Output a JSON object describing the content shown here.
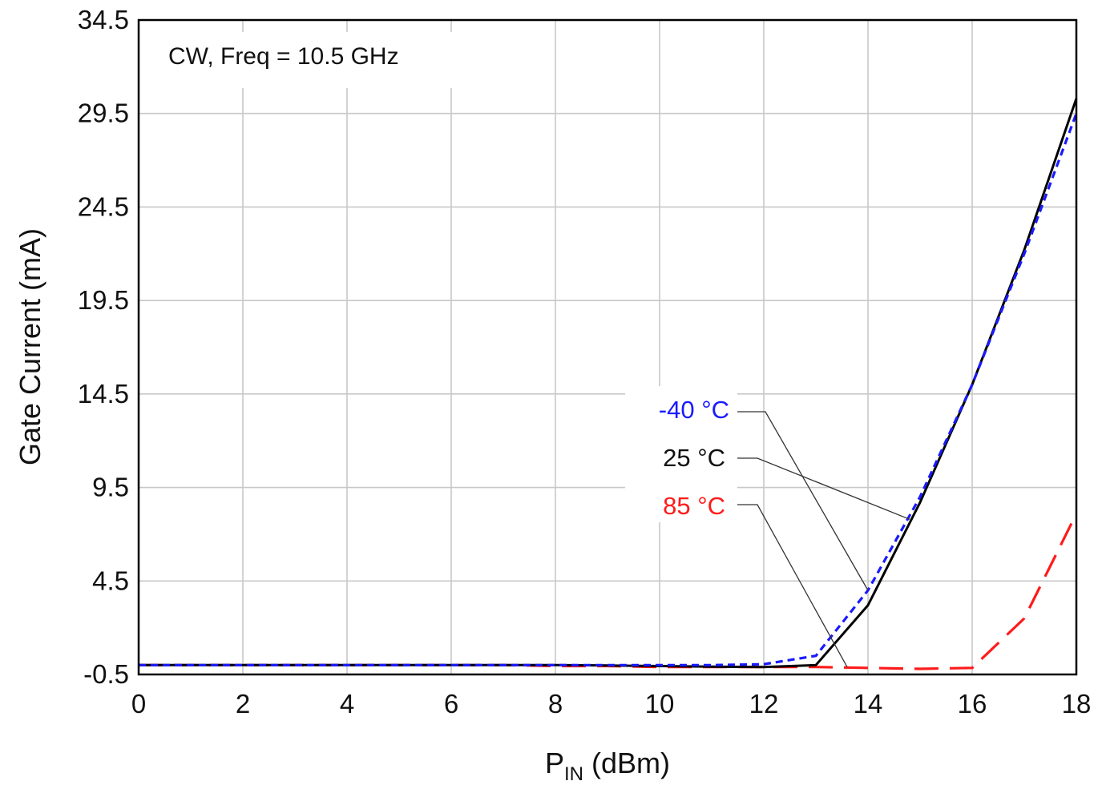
{
  "chart_data": {
    "type": "line",
    "annotation": "CW, Freq = 10.5 GHz",
    "xlabel_main": "P",
    "xlabel_sub": "IN",
    "xlabel_unit": " (dBm)",
    "ylabel": "Gate Current (mA)",
    "xlim": [
      0,
      18
    ],
    "ylim": [
      -0.5,
      34.5
    ],
    "x_ticks": [
      0,
      2,
      4,
      6,
      8,
      10,
      12,
      14,
      16,
      18
    ],
    "x_tick_labels": [
      "0",
      "2",
      "4",
      "6",
      "8",
      "10",
      "12",
      "14",
      "16",
      "18"
    ],
    "y_ticks": [
      -0.5,
      4.5,
      9.5,
      14.5,
      19.5,
      24.5,
      29.5,
      34.5
    ],
    "y_tick_labels": [
      "-0.5",
      "4.5",
      "9.5",
      "14.5",
      "19.5",
      "24.5",
      "29.5",
      "34.5"
    ],
    "grid": true,
    "x": [
      0,
      1,
      2,
      3,
      4,
      5,
      6,
      7,
      8,
      9,
      10,
      11,
      12,
      13,
      14,
      15,
      16,
      17,
      18
    ],
    "series": [
      {
        "name": "-40 °C",
        "color": "#1a1aff",
        "dash": "short-dash",
        "values": [
          0.0,
          0.0,
          0.0,
          0.0,
          0.0,
          0.0,
          0.0,
          0.0,
          0.0,
          0.0,
          0.0,
          0.0,
          0.05,
          0.5,
          4.0,
          9.0,
          15.0,
          22.0,
          29.5
        ]
      },
      {
        "name": "25 °C",
        "color": "#000000",
        "dash": "solid",
        "values": [
          0.0,
          0.0,
          0.0,
          0.0,
          0.0,
          0.0,
          0.0,
          0.0,
          0.0,
          -0.02,
          -0.05,
          -0.08,
          -0.1,
          0.0,
          3.2,
          8.7,
          15.0,
          22.2,
          30.3
        ]
      },
      {
        "name": "85 °C",
        "color": "#ff1a1a",
        "dash": "long-dash",
        "values": [
          0.0,
          0.0,
          0.0,
          0.0,
          0.0,
          0.0,
          0.0,
          0.0,
          -0.05,
          -0.05,
          -0.1,
          -0.1,
          -0.1,
          -0.1,
          -0.15,
          -0.2,
          -0.15,
          2.5,
          8.1
        ]
      }
    ],
    "legend_placement": "center-right (labels with leader lines)"
  }
}
